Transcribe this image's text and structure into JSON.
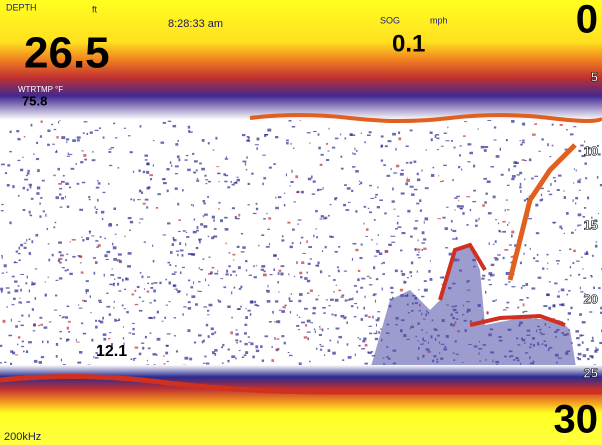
{
  "header": {
    "depth_label": "DEPTH",
    "depth_unit": "ft",
    "time": "8:28:33 am",
    "sog_label": "SOG",
    "sog_unit": "mph",
    "sog_value": "0.1",
    "depth_value": "26.5",
    "water_temp_label": "WTRTMP °F",
    "water_temp_value": "75.8"
  },
  "depth_scale": [
    0,
    5,
    10,
    15,
    20,
    25,
    30
  ],
  "fish_depth": "12.1",
  "frequency": "200kHz"
}
